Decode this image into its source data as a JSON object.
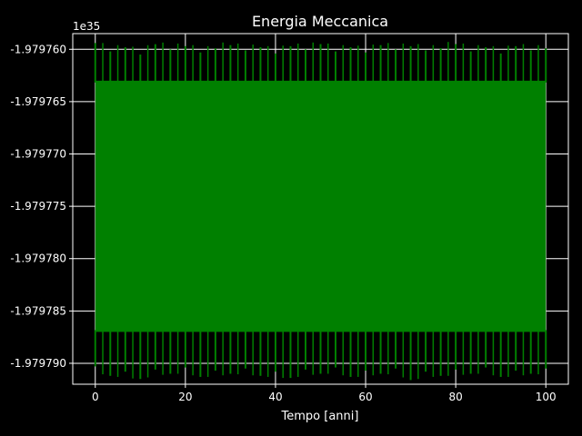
{
  "chart_data": {
    "type": "line",
    "title": "Energia Meccanica",
    "xlabel": "Tempo [anni]",
    "ylabel": "",
    "offset_label": "1e35",
    "xlim": [
      -5,
      105
    ],
    "ylim": [
      -1.979792,
      -1.9797585
    ],
    "x_ticks": [
      0,
      20,
      40,
      60,
      80,
      100
    ],
    "x_tick_labels": [
      "0",
      "20",
      "40",
      "60",
      "80",
      "100"
    ],
    "y_ticks": [
      -1.97979,
      -1.979785,
      -1.97978,
      -1.979775,
      -1.97977,
      -1.979765,
      -1.97976
    ],
    "y_tick_labels": [
      "-1.979790",
      "-1.979785",
      "-1.979780",
      "-1.979775",
      "-1.979770",
      "-1.979765",
      "-1.979760"
    ],
    "grid": true,
    "background": "#000000",
    "foreground": "#ffffff",
    "series": [
      {
        "color": "#008000",
        "x_range": [
          0,
          100
        ],
        "band_upper": -1.979763,
        "band_lower": -1.979787,
        "peak_max": -1.979759,
        "peak_min": -1.979791,
        "values_max": [
          -1.9797594,
          -1.9797602,
          -1.9797598,
          -1.9797605,
          -1.97975951,
          -1.97976,
          -1.9797597,
          -1.9797603,
          -1.9797599,
          -1.9797596,
          -1.9797601,
          -1.9797598,
          -1.9797604,
          -1.9797597,
          -1.97976,
          -1.9797595,
          -1.9797602,
          -1.9797598,
          -1.9797603,
          -1.9797596,
          -1.97976,
          -1.9797597,
          -1.9797601,
          -1.9797599,
          -1.9797595,
          -1.9797602,
          -1.9797598,
          -1.9797604,
          -1.9797597,
          -1.9797601,
          -1.9797599
        ],
        "values_min": [
          -1.9797903,
          -1.9797912,
          -1.9797908,
          -1.9797915,
          -1.9797906,
          -1.979791,
          -1.9797904,
          -1.9797913,
          -1.9797907,
          -1.979791,
          -1.9797905,
          -1.9797912,
          -1.9797908,
          -1.9797914,
          -1.9797906,
          -1.979791,
          -1.9797904,
          -1.9797913,
          -1.9797907,
          -1.979791,
          -1.9797905,
          -1.9797916,
          -1.9797908,
          -1.9797912,
          -1.9797906,
          -1.979791,
          -1.9797904,
          -1.9797913,
          -1.9797907,
          -1.979791,
          -1.9797905
        ]
      }
    ]
  }
}
